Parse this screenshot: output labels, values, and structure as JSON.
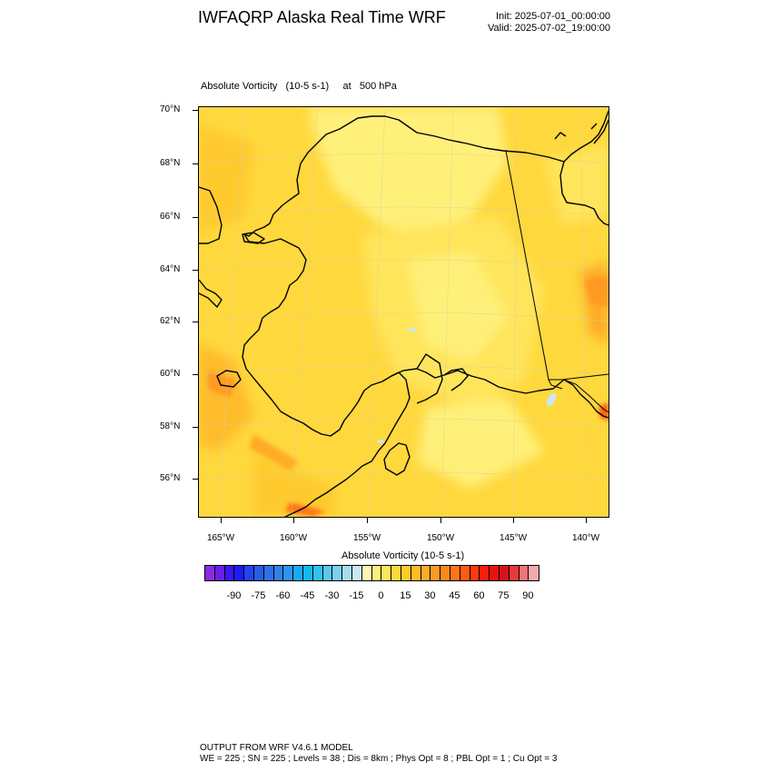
{
  "header": {
    "title": "IWFAQRP Alaska Real Time WRF",
    "init": "Init: 2025-07-01_00:00:00",
    "valid": "Valid: 2025-07-02_19:00:00"
  },
  "plot": {
    "subtitle": "Absolute Vorticity   (10-5 s-1)     at   500 hPa",
    "lat_labels": [
      "70°N",
      "68°N",
      "66°N",
      "64°N",
      "62°N",
      "60°N",
      "58°N",
      "56°N"
    ],
    "lon_labels": [
      "165°W",
      "160°W",
      "155°W",
      "150°W",
      "145°W",
      "140°W"
    ]
  },
  "colorbar": {
    "title": "Absolute Vorticity  (10-5 s-1)",
    "labels": [
      "-90",
      "-75",
      "-60",
      "-45",
      "-30",
      "-15",
      "0",
      "15",
      "30",
      "45",
      "60",
      "75",
      "90"
    ],
    "colors": [
      "#8a2be2",
      "#6a1ee8",
      "#3a16ef",
      "#1c1cf5",
      "#2244f0",
      "#2a5ce8",
      "#2f70e6",
      "#337fe8",
      "#2f92ee",
      "#1aa8f2",
      "#14b8f0",
      "#2fc3ef",
      "#5ac8ef",
      "#7cd0ef",
      "#a4ddf0",
      "#cbe8f2",
      "#fff6b3",
      "#fff07a",
      "#ffe55c",
      "#ffd83d",
      "#ffca2f",
      "#ffbb29",
      "#ffab26",
      "#ff9a22",
      "#ff881d",
      "#ff7418",
      "#ff5c12",
      "#ff3a0c",
      "#f81e08",
      "#e8140a",
      "#d4141a",
      "#e63b3b",
      "#f07474",
      "#f6a8a8"
    ]
  },
  "footer": {
    "line1": "OUTPUT FROM WRF V4.6.1 MODEL",
    "line2": "WE = 225 ; SN = 225 ; Levels = 38 ; Dis = 8km ; Phys Opt = 8 ; PBL Opt = 1 ; Cu Opt = 3"
  }
}
